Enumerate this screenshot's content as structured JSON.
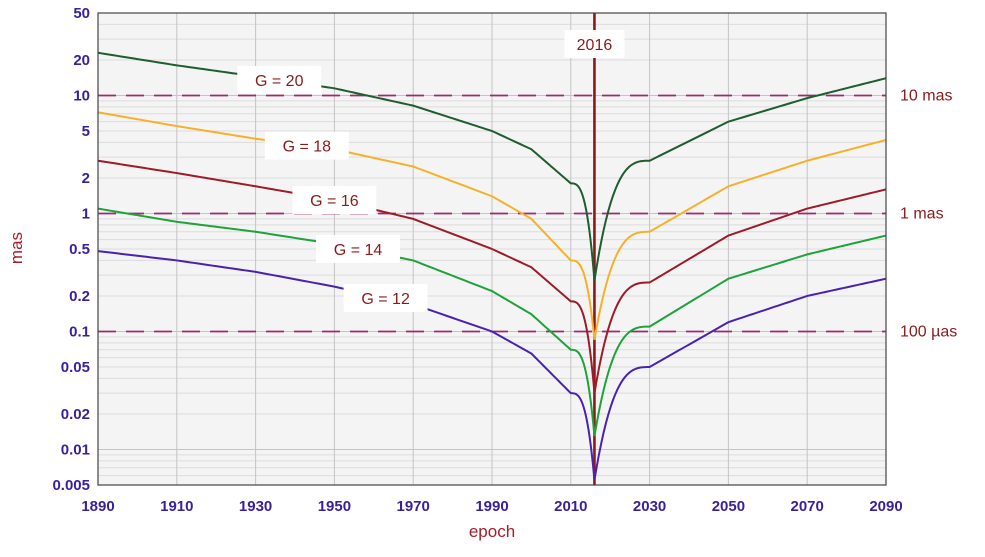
{
  "chart_data": {
    "type": "line",
    "title": "",
    "xlabel": "epoch",
    "ylabel": "mas",
    "y_scale": "log",
    "xlim": [
      1890,
      2090
    ],
    "ylim": [
      0.005,
      50
    ],
    "x_ticks": [
      1890,
      1910,
      1930,
      1950,
      1970,
      1990,
      2010,
      2030,
      2050,
      2070,
      2090
    ],
    "x_tick_labels": [
      "1890",
      "1910",
      "1930",
      "1950",
      "1970",
      "1990",
      "2010",
      "2030",
      "2050",
      "2070",
      "2090"
    ],
    "y_ticks": [
      0.005,
      0.01,
      0.02,
      0.05,
      0.1,
      0.2,
      0.5,
      1,
      2,
      5,
      10,
      20,
      50
    ],
    "y_tick_labels": [
      "0.005",
      "0.01",
      "0.02",
      "0.05",
      "0.1",
      "0.2",
      "0.5",
      "1",
      "2",
      "5",
      "10",
      "20",
      "50"
    ],
    "grid": true,
    "reference_epoch": {
      "x": 2016,
      "label": "2016"
    },
    "reference_lines": [
      {
        "y": 10,
        "label": "10 mas"
      },
      {
        "y": 1,
        "label": "1 mas"
      },
      {
        "y": 0.1,
        "label": "100 µas"
      }
    ],
    "series": [
      {
        "name": "G = 20",
        "color": "#1f5c2e",
        "x": [
          1890,
          1910,
          1930,
          1950,
          1970,
          1990,
          2000,
          2010,
          2016,
          2030,
          2050,
          2070,
          2090
        ],
        "values": [
          23,
          18,
          14.5,
          11.5,
          8.2,
          5,
          3.5,
          1.8,
          0.27,
          2.8,
          6,
          9.5,
          14
        ]
      },
      {
        "name": "G = 18",
        "color": "#f6b12b",
        "x": [
          1890,
          1910,
          1930,
          1950,
          1970,
          1990,
          2000,
          2010,
          2016,
          2030,
          2050,
          2070,
          2090
        ],
        "values": [
          7.2,
          5.5,
          4.3,
          3.5,
          2.5,
          1.4,
          0.9,
          0.4,
          0.085,
          0.7,
          1.7,
          2.8,
          4.2
        ]
      },
      {
        "name": "G = 16",
        "color": "#9c1c2a",
        "x": [
          1890,
          1910,
          1930,
          1950,
          1970,
          1990,
          2000,
          2010,
          2016,
          2030,
          2050,
          2070,
          2090
        ],
        "values": [
          2.8,
          2.2,
          1.7,
          1.3,
          0.9,
          0.5,
          0.35,
          0.18,
          0.03,
          0.26,
          0.65,
          1.1,
          1.6
        ]
      },
      {
        "name": "G = 14",
        "color": "#1ea33b",
        "x": [
          1890,
          1910,
          1930,
          1950,
          1970,
          1990,
          2000,
          2010,
          2016,
          2030,
          2050,
          2070,
          2090
        ],
        "values": [
          1.1,
          0.85,
          0.7,
          0.55,
          0.4,
          0.22,
          0.14,
          0.07,
          0.013,
          0.11,
          0.28,
          0.45,
          0.65
        ]
      },
      {
        "name": "G = 12",
        "color": "#4b21b2",
        "x": [
          1890,
          1910,
          1930,
          1950,
          1970,
          1990,
          2000,
          2010,
          2016,
          2030,
          2050,
          2070,
          2090
        ],
        "values": [
          0.48,
          0.4,
          0.32,
          0.24,
          0.17,
          0.1,
          0.065,
          0.03,
          0.0055,
          0.05,
          0.12,
          0.2,
          0.28
        ]
      }
    ]
  }
}
